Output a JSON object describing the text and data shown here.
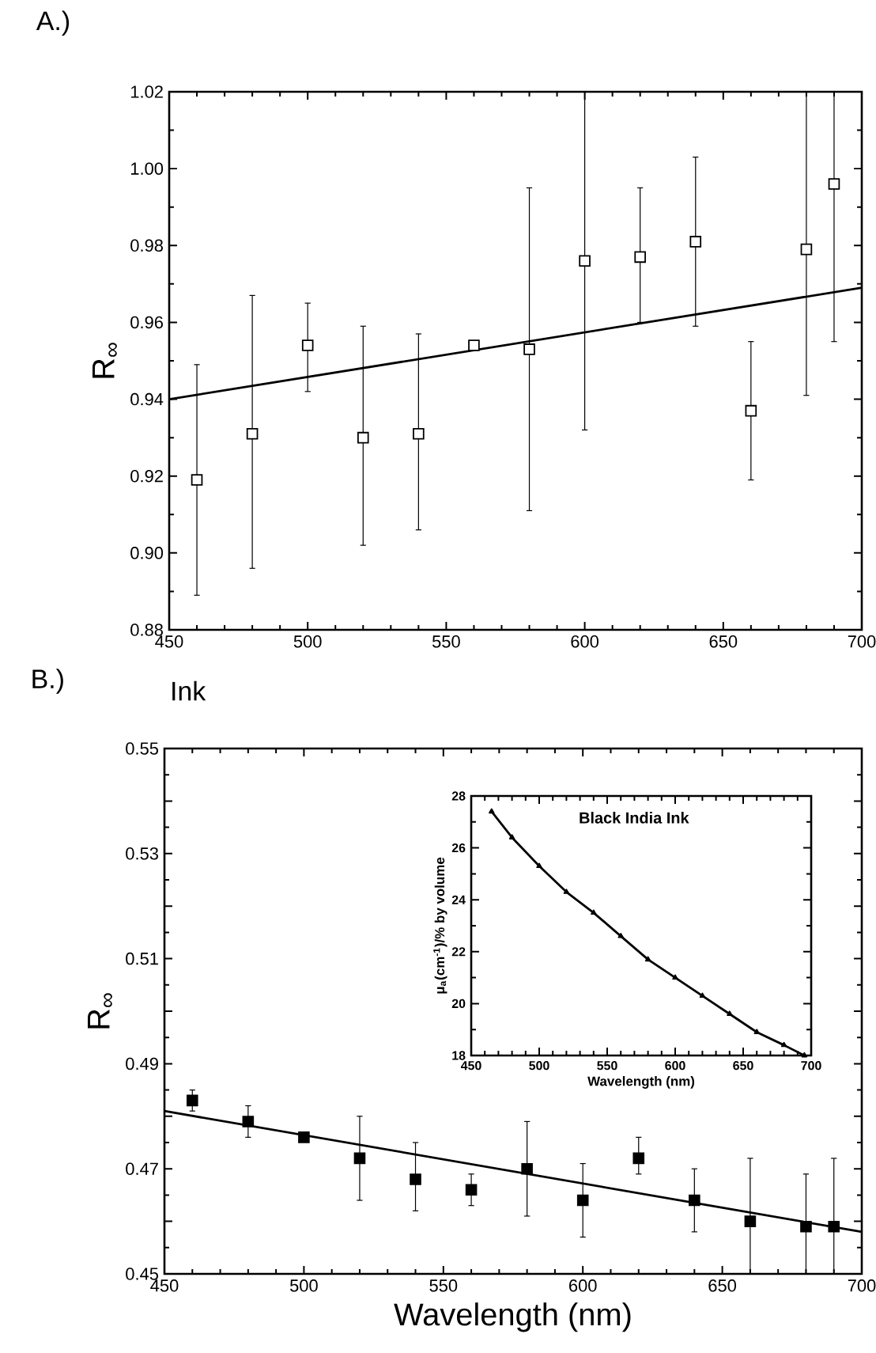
{
  "chart_data": [
    {
      "type": "scatter",
      "title": "A.)",
      "ylabel": "R$_{∞}$",
      "xlim": [
        450,
        700
      ],
      "ylim": [
        0.88,
        1.02
      ],
      "xticks": [
        450,
        500,
        550,
        600,
        650,
        700
      ],
      "yticks": [
        0.88,
        {
          "value": 0.9,
          "label": "0.90"
        },
        0.92,
        0.94,
        0.96,
        0.98,
        {
          "value": 1.0,
          "label": "1.00"
        },
        1.02
      ],
      "series": [
        {
          "type": "scatter",
          "marker": "square",
          "color": "#000000",
          "x": [
            460,
            480,
            500,
            520,
            540,
            560,
            580,
            600,
            620,
            640,
            660,
            680,
            690
          ],
          "values": [
            0.919,
            0.931,
            0.954,
            0.93,
            0.931,
            0.954,
            0.953,
            0.976,
            0.977,
            0.981,
            0.937,
            0.979,
            0.996
          ],
          "errors": [
            [
              0.889,
              0.949
            ],
            [
              0.896,
              0.967
            ],
            [
              0.942,
              0.965
            ],
            [
              0.902,
              0.959
            ],
            [
              0.906,
              0.957
            ],
            null,
            [
              0.911,
              0.995
            ],
            [
              0.932,
              1.02
            ],
            [
              0.96,
              0.995
            ],
            [
              0.959,
              1.003
            ],
            [
              0.919,
              0.955
            ],
            [
              0.941,
              1.02
            ],
            [
              0.955,
              1.02
            ]
          ]
        },
        {
          "type": "line",
          "marker": "none",
          "color": "#000000",
          "x": [
            450,
            700
          ],
          "values": [
            0.94,
            0.969
          ]
        }
      ]
    },
    {
      "type": "scatter",
      "title": "B.)",
      "subtitle": "Ink",
      "xlabel": "Wavelength (nm)",
      "ylabel": "R$_{∞}$",
      "xlim": [
        450,
        700
      ],
      "ylim": [
        0.45,
        0.55
      ],
      "xticks": [
        450,
        500,
        550,
        600,
        650,
        700
      ],
      "yticks": [
        0.45,
        {
          "value": 0.46,
          "label": null
        },
        0.47,
        {
          "value": 0.48,
          "label": null
        },
        0.49,
        {
          "value": 0.5,
          "label": null
        },
        0.51,
        {
          "value": 0.52,
          "label": null
        },
        0.53,
        {
          "value": 0.54,
          "label": null
        },
        0.55
      ],
      "series": [
        {
          "type": "scatter",
          "marker": "square",
          "color": "#000000",
          "x": [
            460,
            480,
            500,
            520,
            540,
            560,
            580,
            600,
            620,
            640,
            660,
            680,
            690
          ],
          "values": [
            0.483,
            0.479,
            0.476,
            0.472,
            0.468,
            0.466,
            0.47,
            0.464,
            0.472,
            0.464,
            0.46,
            0.459,
            0.459
          ],
          "errors": [
            [
              0.481,
              0.485
            ],
            [
              0.476,
              0.482
            ],
            null,
            [
              0.464,
              0.48
            ],
            [
              0.462,
              0.475
            ],
            [
              0.463,
              0.469
            ],
            [
              0.461,
              0.479
            ],
            [
              0.457,
              0.471
            ],
            [
              0.469,
              0.476
            ],
            [
              0.458,
              0.47
            ],
            [
              0.45,
              0.472
            ],
            [
              0.45,
              0.469
            ],
            [
              0.45,
              0.472
            ]
          ]
        },
        {
          "type": "line",
          "marker": "none",
          "color": "#000000",
          "x": [
            450,
            700
          ],
          "values": [
            0.481,
            0.458
          ]
        }
      ]
    },
    {
      "type": "line",
      "title": "Black India Ink",
      "xlabel": "Wavelength (nm)",
      "ylabel": "μ$_{a}$(cm$^{-1}$)/% by volume",
      "xlim": [
        450,
        700
      ],
      "ylim": [
        18,
        28
      ],
      "xticks": [
        450,
        500,
        550,
        600,
        650,
        700
      ],
      "yticks": [
        18,
        20,
        22,
        24,
        26,
        28
      ],
      "marker": "triangle",
      "series": [
        {
          "color": "#000000",
          "x": [
            465,
            480,
            500,
            520,
            540,
            560,
            580,
            600,
            620,
            640,
            660,
            680,
            695
          ],
          "values": [
            27.4,
            26.4,
            25.3,
            24.3,
            23.5,
            22.6,
            21.7,
            21.0,
            20.3,
            19.6,
            18.9,
            18.4,
            18.0
          ]
        }
      ]
    }
  ]
}
